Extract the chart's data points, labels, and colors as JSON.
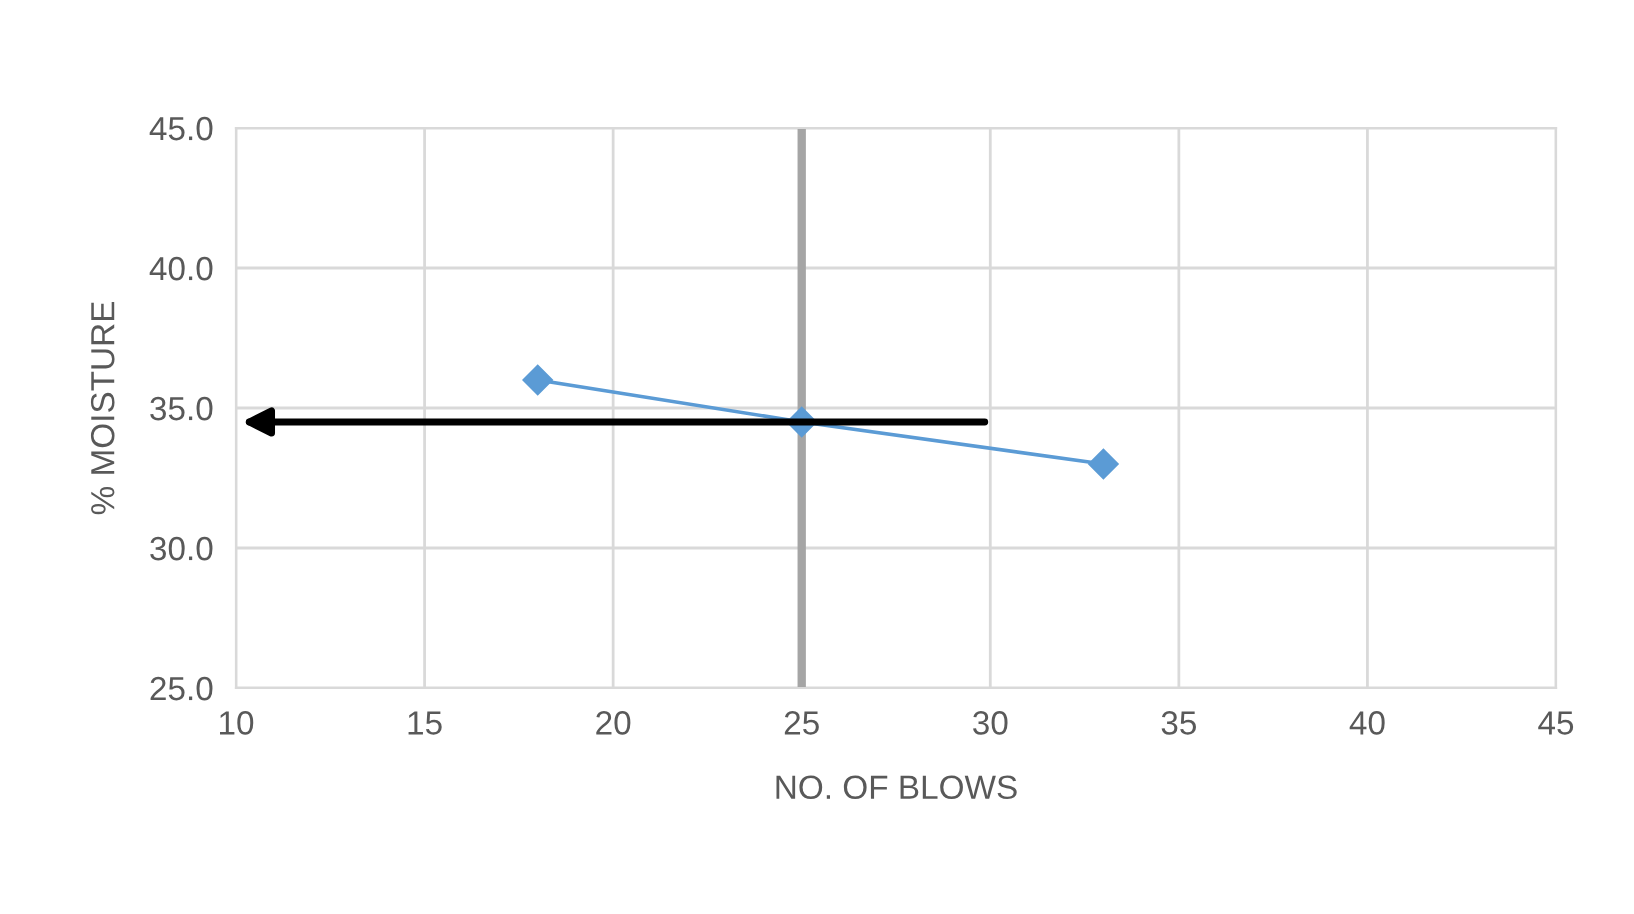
{
  "chart_data": {
    "type": "line",
    "xlabel": "NO. OF BLOWS",
    "ylabel": "% MOISTURE",
    "x": [
      18,
      25,
      33
    ],
    "series": [
      {
        "color": "#5b9bd5",
        "values": [
          36,
          34.5,
          33
        ]
      }
    ],
    "xlim": [
      10,
      45
    ],
    "xticks": [
      10,
      15,
      20,
      25,
      30,
      35,
      40,
      45
    ],
    "ylim": [
      25,
      45
    ],
    "yticks": [
      {
        "value": 25,
        "label": "25.0"
      },
      {
        "value": 30,
        "label": "30.0"
      },
      {
        "value": 35,
        "label": "35.0"
      },
      {
        "value": 40,
        "label": "40.0"
      },
      {
        "value": 45,
        "label": "45.0"
      }
    ],
    "ref_lines": [
      {
        "axis": "x",
        "value": 25,
        "color": "#a5a5a5"
      }
    ],
    "grid": true,
    "marker": "diamond",
    "line_style": "solid"
  }
}
